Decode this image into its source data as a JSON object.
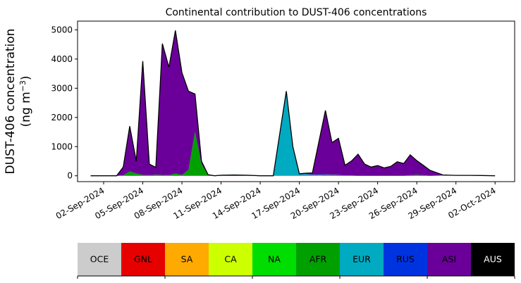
{
  "chart_data": {
    "type": "area",
    "title": "Continental contribution to DUST-406 concentrations",
    "ylabel_line1": "DUST-406 concentration",
    "ylabel_line2_prefix": "(ng m",
    "ylabel_line2_sup": "−3",
    "ylabel_line2_suffix": ")",
    "ylim": [
      -200,
      5300
    ],
    "xlim": [
      "2024-08-31T00:00",
      "2024-10-03T12:00"
    ],
    "grid": false,
    "yticks": [
      0,
      1000,
      2000,
      3000,
      4000,
      5000
    ],
    "xticks": [
      "02-Sep-2024",
      "05-Sep-2024",
      "08-Sep-2024",
      "11-Sep-2024",
      "14-Sep-2024",
      "17-Sep-2024",
      "20-Sep-2024",
      "23-Sep-2024",
      "26-Sep-2024",
      "29-Sep-2024",
      "02-Oct-2024"
    ],
    "x": [
      "2024-09-01T00:00",
      "2024-09-02T00:00",
      "2024-09-03T00:00",
      "2024-09-03T12:00",
      "2024-09-04T00:00",
      "2024-09-04T12:00",
      "2024-09-05T00:00",
      "2024-09-05T12:00",
      "2024-09-06T00:00",
      "2024-09-06T12:00",
      "2024-09-07T00:00",
      "2024-09-07T12:00",
      "2024-09-08T00:00",
      "2024-09-08T12:00",
      "2024-09-09T00:00",
      "2024-09-09T12:00",
      "2024-09-10T00:00",
      "2024-09-10T12:00",
      "2024-09-11T00:00",
      "2024-09-12T00:00",
      "2024-09-13T00:00",
      "2024-09-14T00:00",
      "2024-09-15T00:00",
      "2024-09-16T00:00",
      "2024-09-16T12:00",
      "2024-09-17T00:00",
      "2024-09-17T12:00",
      "2024-09-18T00:00",
      "2024-09-19T00:00",
      "2024-09-19T12:00",
      "2024-09-20T00:00",
      "2024-09-20T12:00",
      "2024-09-21T00:00",
      "2024-09-21T12:00",
      "2024-09-22T00:00",
      "2024-09-22T12:00",
      "2024-09-23T00:00",
      "2024-09-23T12:00",
      "2024-09-24T00:00",
      "2024-09-24T12:00",
      "2024-09-25T00:00",
      "2024-09-25T12:00",
      "2024-09-26T00:00",
      "2024-09-26T12:00",
      "2024-09-27T00:00",
      "2024-09-28T00:00",
      "2024-09-29T00:00",
      "2024-09-30T00:00",
      "2024-10-01T00:00",
      "2024-10-02T00:00"
    ],
    "series": [
      {
        "name": "OCE",
        "color": "#cccccc",
        "values": [
          0,
          0,
          0,
          0,
          0,
          0,
          0,
          0,
          0,
          0,
          0,
          0,
          0,
          0,
          0,
          0,
          0,
          0,
          0,
          0,
          0,
          0,
          0,
          0,
          0,
          0,
          0,
          0,
          0,
          0,
          0,
          0,
          0,
          0,
          0,
          0,
          0,
          0,
          0,
          0,
          0,
          0,
          0,
          0,
          0,
          0,
          0,
          0,
          0,
          0
        ]
      },
      {
        "name": "GNL",
        "color": "#e60000",
        "values": [
          0,
          0,
          0,
          0,
          0,
          0,
          0,
          0,
          0,
          0,
          0,
          0,
          0,
          0,
          0,
          0,
          0,
          0,
          20,
          30,
          20,
          0,
          0,
          0,
          0,
          0,
          0,
          0,
          0,
          0,
          0,
          0,
          0,
          0,
          0,
          0,
          0,
          0,
          0,
          0,
          0,
          0,
          0,
          0,
          0,
          0,
          0,
          0,
          0,
          0
        ]
      },
      {
        "name": "SA",
        "color": "#ffaa00",
        "values": [
          0,
          0,
          0,
          0,
          0,
          0,
          0,
          0,
          0,
          0,
          0,
          0,
          0,
          0,
          0,
          0,
          0,
          0,
          0,
          0,
          0,
          0,
          0,
          0,
          0,
          0,
          0,
          0,
          0,
          0,
          0,
          0,
          0,
          0,
          0,
          0,
          0,
          0,
          0,
          0,
          0,
          0,
          0,
          0,
          0,
          0,
          0,
          0,
          0,
          0
        ]
      },
      {
        "name": "CA",
        "color": "#ccff00",
        "values": [
          0,
          0,
          0,
          0,
          0,
          0,
          0,
          0,
          0,
          0,
          0,
          0,
          0,
          0,
          0,
          0,
          0,
          0,
          0,
          0,
          0,
          0,
          0,
          0,
          0,
          0,
          0,
          0,
          0,
          0,
          0,
          0,
          0,
          0,
          0,
          0,
          0,
          0,
          0,
          0,
          0,
          0,
          0,
          0,
          0,
          10,
          15,
          15,
          10,
          0
        ]
      },
      {
        "name": "NA",
        "color": "#00dd00",
        "values": [
          0,
          0,
          0,
          0,
          0,
          0,
          0,
          0,
          0,
          0,
          0,
          0,
          0,
          0,
          0,
          0,
          0,
          0,
          0,
          0,
          0,
          0,
          0,
          0,
          0,
          0,
          0,
          0,
          0,
          0,
          0,
          0,
          0,
          0,
          0,
          0,
          0,
          0,
          0,
          0,
          0,
          0,
          0,
          0,
          0,
          0,
          0,
          0,
          0,
          0
        ]
      },
      {
        "name": "AFR",
        "color": "#00a000",
        "values": [
          0,
          0,
          0,
          20,
          150,
          80,
          30,
          20,
          40,
          30,
          20,
          80,
          30,
          200,
          1500,
          400,
          20,
          0,
          0,
          0,
          0,
          0,
          0,
          0,
          0,
          0,
          0,
          0,
          20,
          30,
          20,
          10,
          10,
          0,
          0,
          0,
          0,
          0,
          0,
          0,
          0,
          20,
          40,
          20,
          0,
          0,
          0,
          0,
          0,
          0
        ]
      },
      {
        "name": "EUR",
        "color": "#00aac0",
        "values": [
          0,
          0,
          0,
          0,
          0,
          0,
          0,
          0,
          0,
          0,
          0,
          0,
          0,
          0,
          0,
          0,
          0,
          0,
          0,
          0,
          0,
          0,
          0,
          2900,
          1000,
          50,
          60,
          40,
          20,
          10,
          10,
          0,
          0,
          0,
          0,
          0,
          0,
          0,
          0,
          0,
          0,
          0,
          0,
          0,
          0,
          0,
          0,
          0,
          0,
          0
        ]
      },
      {
        "name": "RUS",
        "color": "#0033e0",
        "values": [
          0,
          0,
          0,
          0,
          0,
          0,
          0,
          0,
          0,
          0,
          0,
          0,
          0,
          0,
          0,
          0,
          0,
          0,
          0,
          0,
          0,
          0,
          0,
          0,
          0,
          0,
          0,
          0,
          0,
          0,
          0,
          0,
          0,
          0,
          0,
          0,
          0,
          0,
          0,
          0,
          0,
          0,
          0,
          0,
          0,
          0,
          0,
          0,
          0,
          0
        ]
      },
      {
        "name": "ASI",
        "color": "#6a0099",
        "values": [
          0,
          0,
          0,
          280,
          1550,
          420,
          3900,
          380,
          250,
          4500,
          3700,
          4900,
          3500,
          2700,
          1300,
          100,
          20,
          0,
          0,
          0,
          0,
          0,
          0,
          0,
          0,
          20,
          30,
          60,
          2200,
          1100,
          1250,
          350,
          500,
          740,
          400,
          300,
          350,
          270,
          320,
          480,
          420,
          700,
          480,
          340,
          190,
          20,
          0,
          0,
          0,
          0
        ]
      },
      {
        "name": "AUS",
        "color": "#000000",
        "values": [
          0,
          0,
          0,
          0,
          0,
          0,
          0,
          0,
          0,
          0,
          0,
          0,
          0,
          0,
          0,
          0,
          0,
          0,
          0,
          0,
          0,
          0,
          0,
          0,
          0,
          0,
          0,
          0,
          0,
          0,
          0,
          0,
          0,
          0,
          0,
          0,
          0,
          0,
          0,
          0,
          0,
          0,
          0,
          0,
          0,
          0,
          0,
          0,
          0,
          0
        ]
      }
    ]
  },
  "legend": [
    {
      "label": "OCE",
      "color": "#cccccc",
      "text_color": "#000000"
    },
    {
      "label": "GNL",
      "color": "#e60000",
      "text_color": "#000000"
    },
    {
      "label": "SA",
      "color": "#ffaa00",
      "text_color": "#000000"
    },
    {
      "label": "CA",
      "color": "#ccff00",
      "text_color": "#000000"
    },
    {
      "label": "NA",
      "color": "#00dd00",
      "text_color": "#000000"
    },
    {
      "label": "AFR",
      "color": "#00a000",
      "text_color": "#000000"
    },
    {
      "label": "EUR",
      "color": "#00aac0",
      "text_color": "#000000"
    },
    {
      "label": "RUS",
      "color": "#0033e0",
      "text_color": "#000000"
    },
    {
      "label": "ASI",
      "color": "#6a0099",
      "text_color": "#000000"
    },
    {
      "label": "AUS",
      "color": "#000000",
      "text_color": "#ffffff"
    }
  ]
}
